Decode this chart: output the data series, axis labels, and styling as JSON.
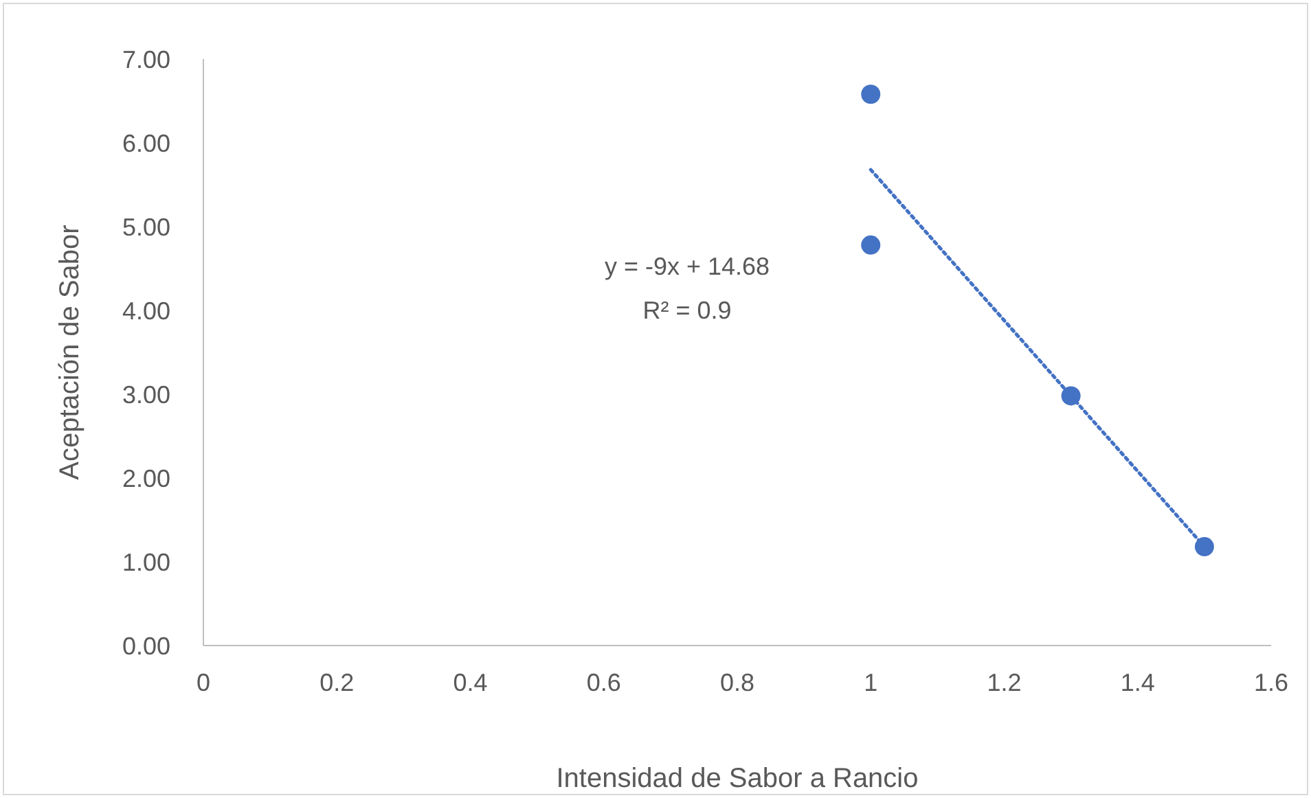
{
  "chart_data": {
    "type": "scatter",
    "xlabel": "Intensidad de Sabor a Rancio",
    "ylabel": "Aceptación de Sabor",
    "annotations": [
      "y = -9x + 14.68",
      "R² = 0.9"
    ],
    "series": [
      {
        "type": "scatter",
        "color": "#4472c4",
        "x": [
          1,
          1,
          1.3,
          1.5
        ],
        "values": [
          6.58,
          4.78,
          2.98,
          1.18
        ],
        "marker": "circle"
      },
      {
        "type": "line",
        "color": "#4472c4",
        "x": [
          1,
          1.5
        ],
        "values": [
          5.68,
          1.18
        ],
        "marker": "none",
        "line_style": "dotted"
      }
    ],
    "xlim": [
      0,
      1.6
    ],
    "xticks": [
      0,
      0.2,
      0.4,
      0.6,
      0.8,
      1,
      1.2,
      1.4,
      1.6
    ],
    "ylim": [
      0,
      7
    ],
    "yticks": [
      {
        "value": 0,
        "label": "0.00"
      },
      {
        "value": 1,
        "label": "1.00"
      },
      {
        "value": 2,
        "label": "2.00"
      },
      {
        "value": 3,
        "label": "3.00"
      },
      {
        "value": 4,
        "label": "4.00"
      },
      {
        "value": 5,
        "label": "5.00"
      },
      {
        "value": 6,
        "label": "6.00"
      },
      {
        "value": 7,
        "label": "7.00"
      }
    ],
    "grid": false,
    "legend": false
  }
}
